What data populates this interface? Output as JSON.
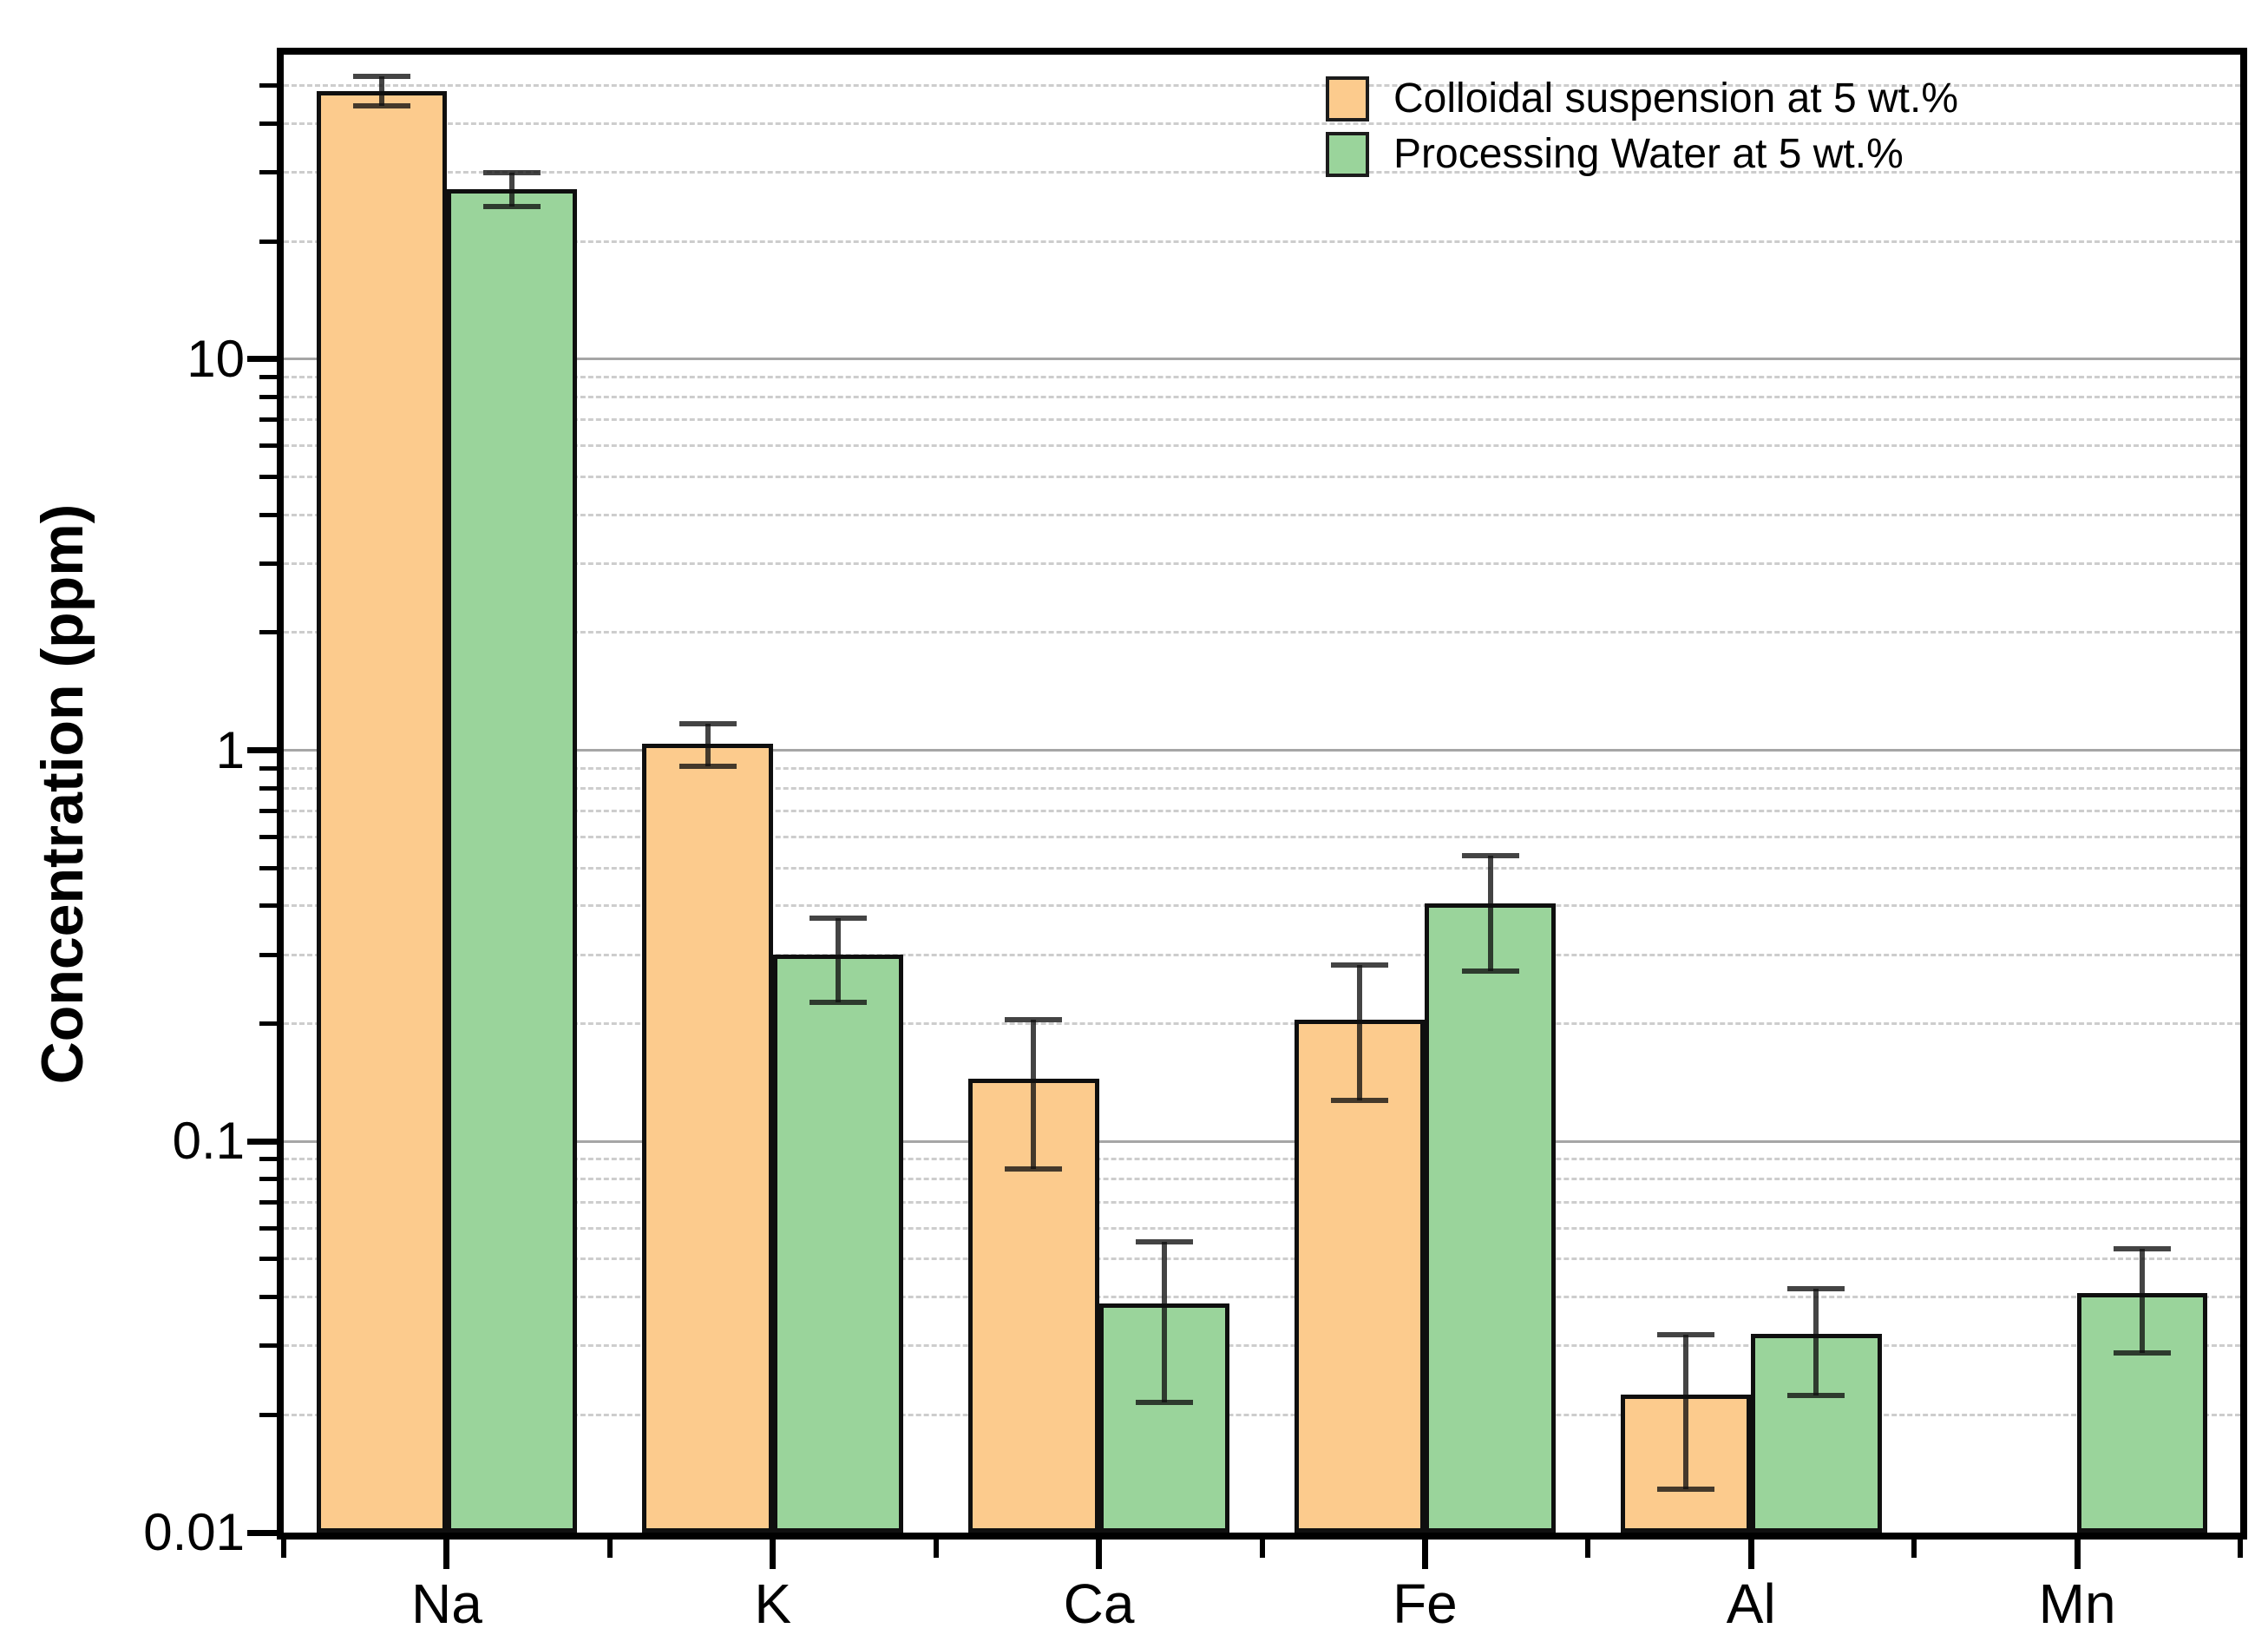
{
  "chart_data": {
    "type": "bar",
    "title": "",
    "xlabel": "",
    "ylabel": "Concentration (ppm)",
    "y_scale": "log",
    "ylim": [
      0.01,
      60
    ],
    "grid": {
      "major": "solid",
      "minor": "dashed"
    },
    "legend_position": "top-right",
    "y_major_ticks": [
      10,
      1,
      0.1,
      0.01
    ],
    "y_tick_labels": [
      "10",
      "1",
      "0.1",
      "0.01"
    ],
    "categories": [
      "Na",
      "K",
      "Ca",
      "Fe",
      "Al",
      "Mn"
    ],
    "series": [
      {
        "name": "Colloidal suspension at 5 wt.%",
        "color": "#FCCB8D",
        "values": [
          48.5,
          1.04,
          0.145,
          0.205,
          0.0225,
          null
        ],
        "errors": [
          4.2,
          0.13,
          0.06,
          0.078,
          0.0096,
          null
        ]
      },
      {
        "name": "Processing Water at 5 wt.%",
        "color": "#9AD49B",
        "values": [
          27.2,
          0.3,
          0.0385,
          0.405,
          0.0322,
          0.041
        ],
        "errors": [
          2.7,
          0.073,
          0.017,
          0.132,
          0.0098,
          0.0122
        ]
      }
    ]
  }
}
